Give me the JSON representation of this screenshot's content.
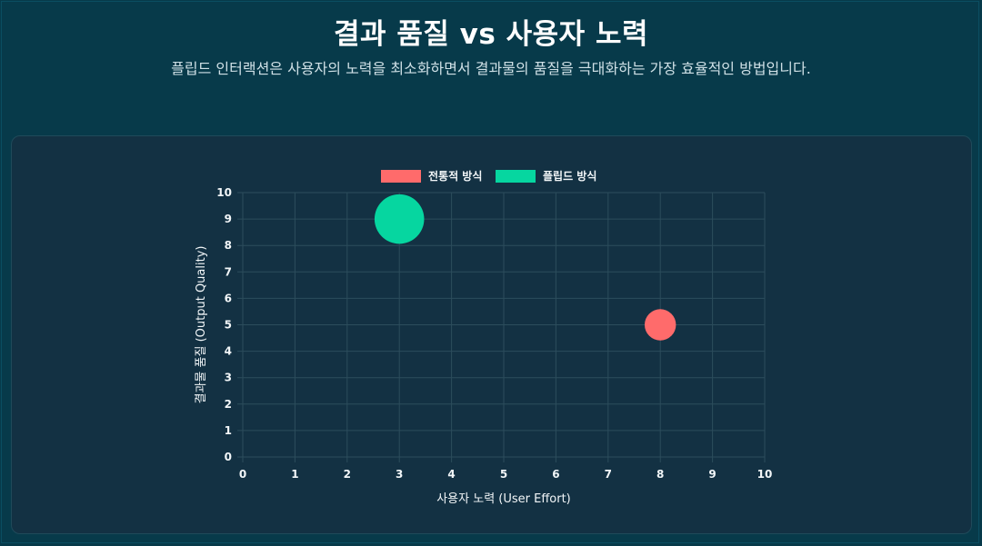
{
  "header": {
    "title": "결과 품질 vs 사용자 노력",
    "subtitle": "플립드 인터랙션은 사용자의 노력을 최소화하면서 결과물의 품질을 극대화하는 가장 효율적인 방법입니다."
  },
  "colors": {
    "page_background": "#073a4a",
    "panel_background": "#133143",
    "grid": "#2c4d5c",
    "text": "#f2f6f8"
  },
  "chart_data": {
    "type": "scatter",
    "variant": "bubble",
    "xlabel": "사용자 노력 (User Effort)",
    "ylabel": "결과물 품질 (Output Quality)",
    "xlim": [
      0,
      10
    ],
    "ylim": [
      0,
      10
    ],
    "x_ticks": [
      "0",
      "1",
      "2",
      "3",
      "4",
      "5",
      "6",
      "7",
      "8",
      "9",
      "10"
    ],
    "y_ticks": [
      "0",
      "1",
      "2",
      "3",
      "4",
      "5",
      "6",
      "7",
      "8",
      "9",
      "10"
    ],
    "grid": true,
    "legend_position": "top-center",
    "series": [
      {
        "name": "전통적 방식",
        "color": "#ff6b6b",
        "points": [
          {
            "x": 8,
            "y": 5,
            "r": 0.6
          }
        ]
      },
      {
        "name": "플립드 방식",
        "color": "#06d6a0",
        "points": [
          {
            "x": 3,
            "y": 9,
            "r": 0.95
          }
        ]
      }
    ]
  }
}
